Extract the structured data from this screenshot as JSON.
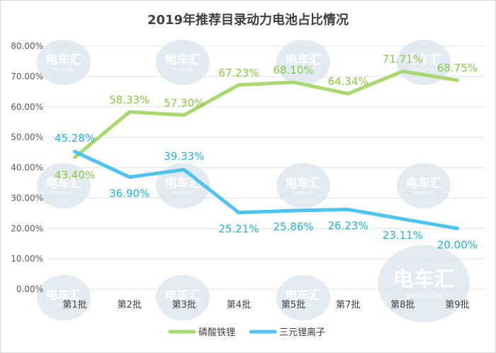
{
  "chart_data": {
    "type": "line",
    "title": "2019年推荐目录动力电池占比情况",
    "categories": [
      "第1批",
      "第2批",
      "第3批",
      "第4批",
      "第5批",
      "第7批",
      "第8批",
      "第9批"
    ],
    "series": [
      {
        "name": "磷酸铁锂",
        "color": "#a9d86e",
        "values": [
          43.4,
          58.33,
          57.3,
          67.23,
          68.1,
          64.34,
          71.71,
          68.75
        ],
        "labels": [
          "43.40%",
          "58.33%",
          "57.30%",
          "67.23%",
          "68.10%",
          "64.34%",
          "71.71%",
          "68.75%"
        ]
      },
      {
        "name": "三元锂离子",
        "color": "#4dc3ef",
        "values": [
          45.28,
          36.9,
          39.33,
          25.21,
          25.86,
          26.23,
          23.11,
          20.0
        ],
        "labels": [
          "45.28%",
          "36.90%",
          "39.33%",
          "25.21%",
          "25.86%",
          "26.23%",
          "23.11%",
          "20.00%"
        ]
      }
    ],
    "ylim": [
      0,
      80
    ],
    "yticks": [
      "0.00%",
      "10.00%",
      "20.00%",
      "30.00%",
      "40.00%",
      "50.00%",
      "60.00%",
      "70.00%",
      "80.00%"
    ],
    "grid": true,
    "legend_position": "bottom",
    "xlabel": "",
    "ylabel": ""
  },
  "watermark": {
    "text": "电车汇",
    "subtext": "EVHUI.COM"
  }
}
